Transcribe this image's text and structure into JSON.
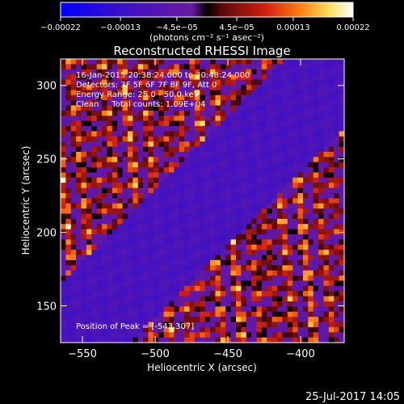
{
  "chart_data": {
    "type": "heatmap",
    "title": "Reconstructed RHESSI Image",
    "xlabel": "Heliocentric X (arcsec)",
    "ylabel": "Heliocentric Y (arcsec)",
    "xlim": [
      -565,
      -370
    ],
    "ylim": [
      125,
      318
    ],
    "x_ticks": [
      -550,
      -500,
      -450,
      -400
    ],
    "x_tick_labels": [
      "−550",
      "−500",
      "−450",
      "−400"
    ],
    "y_ticks": [
      150,
      200,
      250,
      300
    ],
    "y_tick_labels": [
      "150",
      "200",
      "250",
      "300"
    ],
    "colorbar": {
      "range": [
        -0.00022,
        0.00022
      ],
      "ticks": [
        -0.00022,
        -0.00013,
        -4.5e-05,
        4.5e-05,
        0.00013,
        0.00022
      ],
      "tick_labels": [
        "−0.00022",
        "−0.00013",
        "−4.5e−05",
        "4.5e−05",
        "0.00013",
        "0.00022"
      ],
      "unit_label": "(photons cm⁻² s⁻¹ asec⁻²)",
      "colormap": "blue-purple-red-orange-yellow-white"
    },
    "annotations": [
      "16-Jan-2015 20:38:24.000 to 20:48:24.000",
      "Detectors: 3F 5F 6F 7F 8F 9F, Att 0",
      "Energy Range: 25.0 - 50.0 keV",
      "Clean     Total counts: 1.09E+04"
    ],
    "peak_label": "Position of Peak = [-543,307]",
    "peak_position": [
      -543,
      307
    ],
    "grid": false
  },
  "footer": {
    "date": "25-Jul-2017 14:05"
  }
}
